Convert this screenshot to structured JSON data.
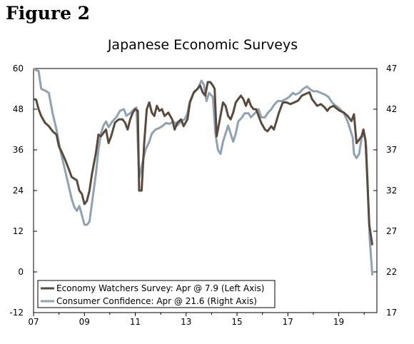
{
  "figure_label": "Figure 2",
  "chart_data": {
    "type": "line",
    "title": "Japanese Economic Surveys",
    "x_ticks": [
      "07",
      "09",
      "11",
      "13",
      "15",
      "17",
      "19"
    ],
    "x_range": [
      2007.0,
      2020.5
    ],
    "y_left": {
      "ticks": [
        "60",
        "48",
        "36",
        "24",
        "12",
        "0",
        "-12"
      ],
      "range": [
        -12,
        60
      ]
    },
    "y_right": {
      "ticks": [
        "47",
        "42",
        "37",
        "32",
        "27",
        "22",
        "17"
      ],
      "range": [
        17,
        47
      ]
    },
    "legend_position": "bottom-left",
    "series": [
      {
        "name": "Economy Watchers Survey: Apr @ 7.9 (Left Axis)",
        "axis": "left",
        "color": "#5a4a3e",
        "points": [
          [
            2007.0,
            51
          ],
          [
            2007.1,
            50.8
          ],
          [
            2007.2,
            48
          ],
          [
            2007.3,
            46
          ],
          [
            2007.45,
            44
          ],
          [
            2007.6,
            43
          ],
          [
            2007.75,
            41.5
          ],
          [
            2007.9,
            40.5
          ],
          [
            2008.0,
            37
          ],
          [
            2008.1,
            35.5
          ],
          [
            2008.25,
            33
          ],
          [
            2008.4,
            30
          ],
          [
            2008.5,
            28
          ],
          [
            2008.6,
            27.5
          ],
          [
            2008.7,
            27
          ],
          [
            2008.8,
            24
          ],
          [
            2008.9,
            23
          ],
          [
            2009.0,
            20
          ],
          [
            2009.1,
            21
          ],
          [
            2009.2,
            24
          ],
          [
            2009.3,
            29
          ],
          [
            2009.45,
            35
          ],
          [
            2009.55,
            40.5
          ],
          [
            2009.65,
            40
          ],
          [
            2009.75,
            41
          ],
          [
            2009.85,
            42
          ],
          [
            2009.95,
            38
          ],
          [
            2010.05,
            40
          ],
          [
            2010.2,
            44
          ],
          [
            2010.35,
            45
          ],
          [
            2010.5,
            45
          ],
          [
            2010.6,
            44
          ],
          [
            2010.7,
            42
          ],
          [
            2010.8,
            45
          ],
          [
            2010.9,
            47
          ],
          [
            2011.0,
            48
          ],
          [
            2011.1,
            47.5
          ],
          [
            2011.15,
            24
          ],
          [
            2011.25,
            24
          ],
          [
            2011.35,
            38
          ],
          [
            2011.45,
            48
          ],
          [
            2011.55,
            50
          ],
          [
            2011.65,
            47
          ],
          [
            2011.75,
            46
          ],
          [
            2011.85,
            49
          ],
          [
            2011.95,
            47.5
          ],
          [
            2012.05,
            48
          ],
          [
            2012.15,
            46
          ],
          [
            2012.3,
            47
          ],
          [
            2012.45,
            45
          ],
          [
            2012.55,
            42
          ],
          [
            2012.65,
            44
          ],
          [
            2012.8,
            45
          ],
          [
            2012.9,
            43
          ],
          [
            2013.05,
            45
          ],
          [
            2013.15,
            50
          ],
          [
            2013.3,
            53
          ],
          [
            2013.45,
            54
          ],
          [
            2013.55,
            55
          ],
          [
            2013.65,
            53
          ],
          [
            2013.75,
            52
          ],
          [
            2013.85,
            56
          ],
          [
            2013.95,
            56
          ],
          [
            2014.05,
            55
          ],
          [
            2014.12,
            54
          ],
          [
            2014.2,
            40
          ],
          [
            2014.3,
            44
          ],
          [
            2014.45,
            50
          ],
          [
            2014.55,
            49
          ],
          [
            2014.65,
            46
          ],
          [
            2014.75,
            45
          ],
          [
            2014.85,
            47
          ],
          [
            2014.95,
            50
          ],
          [
            2015.05,
            51
          ],
          [
            2015.15,
            52
          ],
          [
            2015.25,
            51
          ],
          [
            2015.35,
            49
          ],
          [
            2015.45,
            51
          ],
          [
            2015.55,
            49
          ],
          [
            2015.65,
            48
          ],
          [
            2015.75,
            48
          ],
          [
            2015.85,
            46
          ],
          [
            2015.95,
            44
          ],
          [
            2016.1,
            42
          ],
          [
            2016.2,
            41.5
          ],
          [
            2016.35,
            43
          ],
          [
            2016.45,
            42
          ],
          [
            2016.55,
            44.5
          ],
          [
            2016.65,
            47
          ],
          [
            2016.8,
            50
          ],
          [
            2016.95,
            50
          ],
          [
            2017.1,
            49.5
          ],
          [
            2017.25,
            50
          ],
          [
            2017.4,
            50.5
          ],
          [
            2017.55,
            52
          ],
          [
            2017.7,
            52.5
          ],
          [
            2017.85,
            53
          ],
          [
            2017.95,
            51
          ],
          [
            2018.05,
            50
          ],
          [
            2018.15,
            49
          ],
          [
            2018.3,
            49.5
          ],
          [
            2018.45,
            48.5
          ],
          [
            2018.55,
            47.5
          ],
          [
            2018.65,
            48.5
          ],
          [
            2018.8,
            49
          ],
          [
            2018.95,
            48
          ],
          [
            2019.05,
            47.5
          ],
          [
            2019.2,
            47
          ],
          [
            2019.35,
            46
          ],
          [
            2019.5,
            44.5
          ],
          [
            2019.6,
            46.5
          ],
          [
            2019.7,
            38
          ],
          [
            2019.8,
            39
          ],
          [
            2019.9,
            40
          ],
          [
            2019.97,
            42
          ],
          [
            2020.05,
            39
          ],
          [
            2020.12,
            28
          ],
          [
            2020.2,
            14
          ],
          [
            2020.32,
            7.9
          ]
        ]
      },
      {
        "name": "Consumer Confidence: Apr @ 21.6 (Right Axis)",
        "axis": "right",
        "color": "#8ea2b3",
        "points": [
          [
            2007.0,
            47
          ],
          [
            2007.1,
            46.8
          ],
          [
            2007.2,
            46.7
          ],
          [
            2007.3,
            44.5
          ],
          [
            2007.45,
            44.3
          ],
          [
            2007.6,
            44
          ],
          [
            2007.75,
            41.5
          ],
          [
            2007.9,
            39.5
          ],
          [
            2008.05,
            37
          ],
          [
            2008.2,
            35
          ],
          [
            2008.35,
            33
          ],
          [
            2008.5,
            31
          ],
          [
            2008.6,
            30
          ],
          [
            2008.7,
            29.5
          ],
          [
            2008.8,
            30.1
          ],
          [
            2008.9,
            29
          ],
          [
            2009.0,
            27.8
          ],
          [
            2009.1,
            27.8
          ],
          [
            2009.2,
            28.2
          ],
          [
            2009.3,
            30.5
          ],
          [
            2009.45,
            34
          ],
          [
            2009.55,
            37
          ],
          [
            2009.65,
            39
          ],
          [
            2009.75,
            40
          ],
          [
            2009.85,
            40.5
          ],
          [
            2009.95,
            39.8
          ],
          [
            2010.1,
            40.5
          ],
          [
            2010.25,
            41
          ],
          [
            2010.4,
            41.8
          ],
          [
            2010.55,
            42
          ],
          [
            2010.65,
            41.2
          ],
          [
            2010.8,
            41.5
          ],
          [
            2010.95,
            42
          ],
          [
            2011.05,
            42.2
          ],
          [
            2011.15,
            33.5
          ],
          [
            2011.25,
            35
          ],
          [
            2011.4,
            37
          ],
          [
            2011.55,
            38
          ],
          [
            2011.65,
            39
          ],
          [
            2011.8,
            39.5
          ],
          [
            2011.95,
            39.7
          ],
          [
            2012.1,
            40
          ],
          [
            2012.2,
            40.3
          ],
          [
            2012.35,
            40.2
          ],
          [
            2012.5,
            40.5
          ],
          [
            2012.65,
            40
          ],
          [
            2012.8,
            40.5
          ],
          [
            2012.95,
            40.8
          ],
          [
            2013.05,
            41.5
          ],
          [
            2013.15,
            43
          ],
          [
            2013.3,
            44
          ],
          [
            2013.45,
            44.5
          ],
          [
            2013.6,
            45.5
          ],
          [
            2013.7,
            45
          ],
          [
            2013.8,
            43
          ],
          [
            2013.9,
            44
          ],
          [
            2014.05,
            43.5
          ],
          [
            2014.15,
            39
          ],
          [
            2014.25,
            37
          ],
          [
            2014.35,
            36.5
          ],
          [
            2014.45,
            38
          ],
          [
            2014.55,
            39
          ],
          [
            2014.65,
            40
          ],
          [
            2014.75,
            39
          ],
          [
            2014.85,
            38
          ],
          [
            2014.95,
            39
          ],
          [
            2015.05,
            40.5
          ],
          [
            2015.2,
            41
          ],
          [
            2015.3,
            41.5
          ],
          [
            2015.45,
            41.5
          ],
          [
            2015.55,
            41
          ],
          [
            2015.7,
            41.5
          ],
          [
            2015.85,
            42
          ],
          [
            2015.95,
            41
          ],
          [
            2016.1,
            41
          ],
          [
            2016.2,
            41.5
          ],
          [
            2016.35,
            42
          ],
          [
            2016.45,
            42.5
          ],
          [
            2016.6,
            43
          ],
          [
            2016.75,
            43
          ],
          [
            2016.9,
            43.2
          ],
          [
            2017.05,
            43.5
          ],
          [
            2017.2,
            44
          ],
          [
            2017.3,
            43.8
          ],
          [
            2017.45,
            44
          ],
          [
            2017.6,
            44.5
          ],
          [
            2017.75,
            44.8
          ],
          [
            2017.85,
            44.5
          ],
          [
            2018.0,
            44.2
          ],
          [
            2018.15,
            44.2
          ],
          [
            2018.3,
            44
          ],
          [
            2018.45,
            43.8
          ],
          [
            2018.6,
            43.5
          ],
          [
            2018.75,
            42.8
          ],
          [
            2018.85,
            42.5
          ],
          [
            2018.95,
            42.3
          ],
          [
            2019.05,
            42
          ],
          [
            2019.2,
            41.5
          ],
          [
            2019.35,
            40.5
          ],
          [
            2019.45,
            39.5
          ],
          [
            2019.55,
            38.5
          ],
          [
            2019.6,
            36.5
          ],
          [
            2019.7,
            36
          ],
          [
            2019.8,
            36.5
          ],
          [
            2019.9,
            38.5
          ],
          [
            2020.0,
            39
          ],
          [
            2020.08,
            37.5
          ],
          [
            2020.15,
            31.5
          ],
          [
            2020.22,
            26
          ],
          [
            2020.32,
            21.6
          ]
        ]
      }
    ]
  }
}
